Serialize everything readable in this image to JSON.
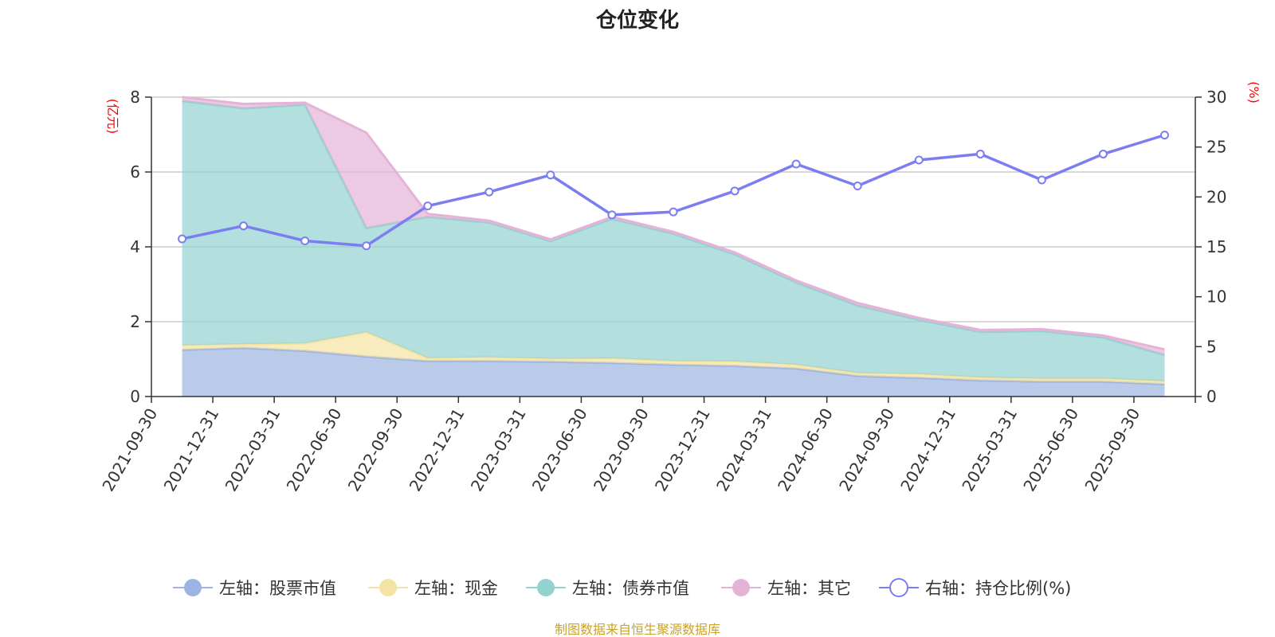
{
  "chart_data": {
    "type": "area",
    "title": "仓位变化",
    "left_axis_unit": "(亿元)",
    "right_axis_unit": "(%)",
    "source": "制图数据来自恒生聚源数据库",
    "categories": [
      "2021-09-30",
      "2021-12-31",
      "2022-03-31",
      "2022-06-30",
      "2022-09-30",
      "2022-12-31",
      "2023-03-31",
      "2023-06-30",
      "2023-09-30",
      "2023-12-31",
      "2024-03-31",
      "2024-06-30",
      "2024-09-30",
      "2024-12-31",
      "2025-03-31",
      "2025-06-30",
      "2025-09-30"
    ],
    "left_ylim": [
      0,
      8
    ],
    "left_ticks": [
      0,
      2,
      4,
      6,
      8
    ],
    "right_ylim": [
      0,
      30
    ],
    "right_ticks": [
      0,
      5,
      10,
      15,
      20,
      25,
      30
    ],
    "series": [
      {
        "name": "左轴：股票市值",
        "axis": "left",
        "kind": "stacked-area",
        "color": "#9cb4e0",
        "values": [
          1.25,
          1.3,
          1.22,
          1.07,
          0.95,
          0.95,
          0.93,
          0.9,
          0.85,
          0.82,
          0.75,
          0.55,
          0.5,
          0.43,
          0.4,
          0.4,
          0.33
        ]
      },
      {
        "name": "左轴：现金",
        "axis": "left",
        "kind": "stacked-area",
        "color": "#f5e3a3",
        "values": [
          0.12,
          0.1,
          0.2,
          0.65,
          0.08,
          0.1,
          0.08,
          0.12,
          0.1,
          0.12,
          0.1,
          0.08,
          0.1,
          0.08,
          0.08,
          0.08,
          0.08
        ]
      },
      {
        "name": "左轴：债券市值",
        "axis": "left",
        "kind": "stacked-area",
        "color": "#94d1d1",
        "values": [
          6.53,
          6.3,
          6.38,
          2.78,
          3.77,
          3.6,
          3.14,
          3.73,
          3.4,
          2.86,
          2.2,
          1.8,
          1.45,
          1.22,
          1.27,
          1.1,
          0.7
        ]
      },
      {
        "name": "左轴：其它",
        "axis": "left",
        "kind": "stacked-area",
        "color": "#e6b3d8",
        "values": [
          0.1,
          0.12,
          0.05,
          2.55,
          0.08,
          0.05,
          0.05,
          0.05,
          0.05,
          0.05,
          0.05,
          0.07,
          0.05,
          0.05,
          0.05,
          0.05,
          0.15
        ]
      },
      {
        "name": "右轴：持仓比例(%)",
        "axis": "right",
        "kind": "line",
        "color": "#7b7ef0",
        "values": [
          15.8,
          17.1,
          15.6,
          15.1,
          19.1,
          20.5,
          22.2,
          18.2,
          18.5,
          20.6,
          23.3,
          21.1,
          23.7,
          24.3,
          21.7,
          24.3,
          26.2
        ]
      }
    ]
  }
}
